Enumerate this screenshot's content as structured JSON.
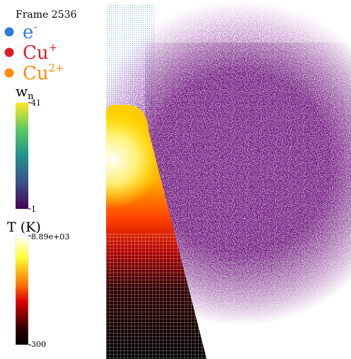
{
  "frame": "Frame 2536",
  "legend": [
    {
      "base": "e",
      "sup": "-",
      "color": "#2a7fd8"
    },
    {
      "base": "Cu",
      "sup": "+",
      "color": "#d8202a"
    },
    {
      "base": "Cu",
      "sup": "2+",
      "color": "#ff8c0e"
    }
  ],
  "colorbars": [
    {
      "title": {
        "base": "w",
        "sub": "n"
      },
      "max": 41,
      "min": 1
    },
    {
      "title": "T (K)",
      "max": {
        "value": 8890,
        "label": "8.89e+03"
      },
      "min": 300
    }
  ]
}
